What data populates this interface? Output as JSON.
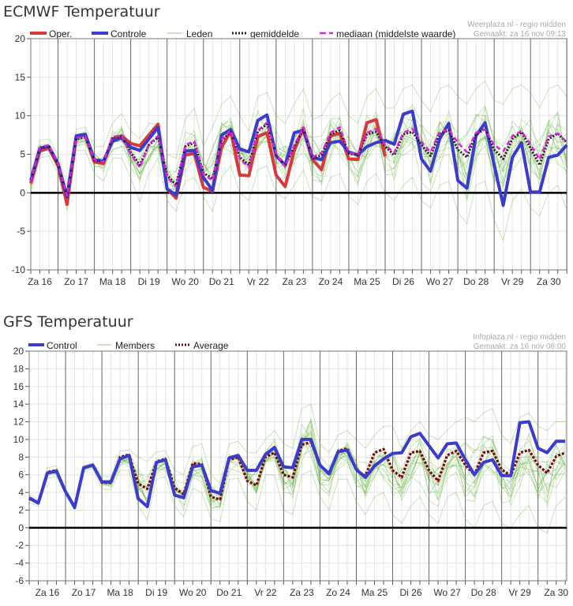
{
  "chart_data": [
    {
      "type": "line",
      "title": "ECMWF Temperatuur",
      "source_line1": "Weerplaza.nl - regio midden",
      "source_line2": "Gemaakt: za 16 nov 09:13",
      "x_start": "Za 16 06:00",
      "x_step_hours": 6,
      "x_tick_labels": [
        "Za 16",
        "Zo 17",
        "Ma 18",
        "Di 19",
        "Wo 20",
        "Do 21",
        "Vr 22",
        "Za 23",
        "Zo 24",
        "Ma 25",
        "Di 26",
        "Wo 27",
        "Do 28",
        "Vr 29",
        "Za 30"
      ],
      "ylim": [
        -10,
        20
      ],
      "y_tick_step": 5,
      "y_tick_labels": [
        "20",
        "15",
        "10",
        "5",
        "0",
        "-5",
        "-10"
      ],
      "grid": true,
      "legend_position": "top-left",
      "legend": {
        "oper": "Oper.",
        "control": "Controle",
        "members": "Leden",
        "mean": "gemiddelde",
        "median": "mediaan (middelste waarde)"
      },
      "colors": {
        "oper": "#d63a3a",
        "control": "#3b3bcc",
        "members": "#5fb13a",
        "mean": "#222222",
        "median": "#e020e0"
      },
      "series": [
        {
          "name": "Oper.",
          "values": [
            1.2,
            5.4,
            5.8,
            3.5,
            -1.5,
            7.3,
            7.5,
            4.0,
            3.8,
            7.0,
            7.4,
            6.4,
            6.1,
            7.5,
            8.9,
            0.5,
            -0.7,
            4.9,
            5.1,
            0.7,
            0.2,
            5.9,
            8.0,
            2.3,
            2.2,
            7.3,
            7.8,
            2.3,
            0.8,
            5.5,
            8.4,
            4.3,
            3.0,
            7.4,
            7.7,
            4.4,
            4.3,
            9.1,
            9.5,
            4.7
          ]
        },
        {
          "name": "Controle",
          "values": [
            1.6,
            5.8,
            6.0,
            3.8,
            -0.5,
            7.4,
            7.6,
            4.3,
            4.1,
            6.7,
            7.1,
            5.9,
            5.5,
            7.0,
            8.5,
            0.5,
            -0.3,
            5.4,
            5.5,
            2.0,
            0.3,
            7.5,
            8.2,
            5.7,
            5.3,
            9.4,
            10.1,
            4.8,
            3.6,
            7.8,
            8.1,
            4.6,
            4.3,
            6.5,
            6.7,
            5.3,
            4.9,
            6.0,
            6.5,
            6.8,
            6.3,
            10.2,
            10.6,
            4.4,
            2.8,
            7.0,
            9.0,
            1.6,
            0.6,
            7.4,
            9.1,
            3.6,
            -1.6,
            4.6,
            6.5,
            0.1,
            0.1,
            4.6,
            4.9,
            6.2
          ]
        },
        {
          "name": "gemiddelde",
          "values": [
            1.5,
            5.8,
            6.1,
            3.7,
            -0.5,
            7.0,
            7.2,
            4.2,
            4.0,
            7.2,
            7.3,
            5.2,
            3.6,
            6.2,
            7.2,
            2.3,
            1.0,
            6.0,
            6.5,
            2.6,
            1.8,
            6.8,
            7.9,
            4.6,
            3.6,
            8.0,
            8.9,
            4.9,
            3.5,
            6.0,
            8.3,
            4.4,
            4.9,
            7.6,
            8.1,
            5.1,
            4.9,
            7.6,
            7.9,
            6.0,
            4.9,
            7.6,
            7.9,
            6.2,
            4.8,
            7.7,
            8.1,
            5.6,
            4.6,
            7.6,
            8.3,
            5.6,
            4.4,
            7.0,
            7.9,
            5.8,
            3.6,
            7.0,
            7.7,
            6.5
          ]
        },
        {
          "name": "mediaan (middelste waarde)",
          "values": [
            1.5,
            5.9,
            6.2,
            3.8,
            -0.4,
            7.1,
            7.3,
            4.3,
            4.0,
            7.3,
            7.4,
            5.0,
            3.3,
            6.3,
            7.4,
            2.0,
            0.8,
            6.2,
            6.7,
            2.4,
            1.6,
            6.9,
            8.1,
            4.4,
            3.3,
            8.1,
            9.1,
            5.0,
            3.4,
            6.2,
            8.5,
            4.6,
            5.2,
            7.8,
            8.5,
            5.2,
            5.0,
            7.8,
            8.3,
            6.2,
            5.2,
            7.8,
            8.3,
            6.6,
            5.3,
            7.9,
            8.2,
            6.5,
            5.3,
            7.8,
            8.2,
            6.2,
            5.4,
            7.4,
            8.0,
            6.3,
            4.3,
            7.3,
            7.7,
            6.6
          ]
        }
      ],
      "members_range": {
        "name": "Leden",
        "max": [
          2.5,
          6.8,
          7.0,
          5.0,
          1.0,
          8.2,
          8.5,
          6.0,
          6.0,
          9.0,
          10.3,
          8.0,
          7.0,
          9.0,
          9.0,
          5.0,
          4.5,
          9.5,
          11.0,
          6.0,
          8.5,
          11.5,
          12.5,
          10.0,
          8.0,
          12.5,
          13.0,
          10.0,
          9.0,
          11.5,
          13.5,
          9.5,
          10.0,
          12.0,
          13.0,
          10.0,
          9.0,
          12.5,
          13.5,
          11.0,
          11.0,
          13.5,
          14.0,
          12.0,
          10.5,
          13.5,
          14.0,
          12.5,
          11.5,
          13.5,
          14.5,
          12.0,
          11.5,
          13.5,
          14.0,
          13.0,
          11.0,
          13.5,
          14.0,
          12.5
        ],
        "min": [
          0.0,
          4.5,
          4.8,
          2.5,
          -2.3,
          5.5,
          5.5,
          2.5,
          1.5,
          4.5,
          4.5,
          2.0,
          -1.2,
          2.5,
          4.5,
          -1.0,
          -2.4,
          1.5,
          2.0,
          -0.5,
          -2.4,
          2.0,
          3.5,
          0.0,
          -1.0,
          3.0,
          3.5,
          0.0,
          -0.8,
          1.0,
          3.0,
          -0.5,
          -1.0,
          2.0,
          2.5,
          -0.5,
          -1.5,
          1.5,
          2.5,
          0.0,
          -1.0,
          1.0,
          2.0,
          -1.0,
          -2.0,
          1.0,
          1.5,
          -2.5,
          -4.0,
          1.0,
          1.5,
          -3.5,
          -6.2,
          -1.0,
          0.5,
          -2.0,
          -3.0,
          0.0,
          1.0,
          -2.3
        ]
      }
    },
    {
      "type": "line",
      "title": "GFS Temperatuur",
      "source_line1": "Infoplaza.nl - regio midden",
      "source_line2": "Gemaakt: za 16 nov 08:00",
      "x_start": "Za 16 00:00",
      "x_step_hours": 6,
      "x_tick_labels": [
        "Za 16",
        "Zo 17",
        "Ma 18",
        "Di 19",
        "Wo 20",
        "Do 21",
        "Vr 22",
        "Za 23",
        "Zo 24",
        "Ma 25",
        "Di 26",
        "Wo 27",
        "Do 28",
        "Vr 29",
        "Za 30"
      ],
      "ylim": [
        -6,
        20
      ],
      "y_tick_step": 2,
      "y_tick_labels": [
        "20",
        "18",
        "16",
        "14",
        "12",
        "10",
        "8",
        "6",
        "4",
        "2",
        "0",
        "-2",
        "-4",
        "-6"
      ],
      "grid": true,
      "legend_position": "top-left",
      "legend": {
        "control": "Control",
        "members": "Members",
        "average": "Average"
      },
      "colors": {
        "control": "#3b3bcc",
        "members": "#5fb13a",
        "average": "#7a0a0a"
      },
      "series": [
        {
          "name": "Control",
          "values": [
            3.4,
            2.8,
            6.2,
            6.4,
            4.1,
            2.3,
            6.8,
            7.1,
            5.2,
            5.2,
            7.8,
            8.2,
            3.3,
            2.4,
            7.4,
            7.7,
            3.7,
            3.4,
            6.9,
            7.1,
            4.2,
            3.9,
            7.9,
            8.2,
            6.5,
            6.5,
            8.3,
            9.1,
            6.9,
            6.8,
            10.0,
            10.0,
            7.1,
            6.1,
            8.6,
            8.8,
            6.6,
            5.7,
            7.0,
            7.8,
            8.4,
            8.5,
            10.3,
            10.7,
            9.3,
            7.9,
            9.5,
            9.6,
            7.7,
            6.0,
            7.4,
            7.7,
            5.9,
            5.9,
            11.9,
            12.0,
            9.0,
            8.5,
            9.8,
            9.8
          ]
        },
        {
          "name": "Average",
          "values": [
            3.3,
            2.8,
            6.3,
            6.5,
            4.1,
            2.3,
            6.8,
            7.1,
            5.1,
            5.1,
            8.0,
            8.3,
            5.0,
            4.4,
            7.5,
            7.8,
            4.5,
            3.8,
            7.3,
            7.2,
            3.5,
            3.2,
            7.7,
            8.0,
            5.3,
            4.8,
            8.0,
            8.5,
            6.0,
            5.7,
            9.4,
            9.7,
            7.1,
            6.0,
            8.7,
            9.0,
            6.5,
            5.9,
            8.5,
            8.9,
            6.5,
            5.7,
            8.5,
            8.7,
            6.5,
            5.3,
            8.2,
            8.7,
            7.1,
            6.0,
            8.5,
            8.7,
            6.6,
            5.9,
            8.5,
            8.8,
            7.1,
            6.2,
            8.1,
            8.5
          ]
        }
      ],
      "members_range": {
        "name": "Members",
        "max": [
          3.8,
          3.1,
          6.8,
          7.0,
          4.4,
          2.7,
          7.1,
          7.3,
          5.8,
          5.8,
          8.7,
          8.8,
          8.0,
          7.5,
          8.6,
          8.7,
          6.5,
          6.0,
          9.2,
          9.5,
          6.0,
          5.0,
          9.5,
          9.8,
          8.5,
          8.5,
          10.0,
          11.0,
          9.5,
          9.0,
          13.5,
          14.0,
          9.5,
          8.5,
          10.5,
          11.0,
          10.0,
          9.0,
          10.5,
          11.5,
          11.5,
          9.0,
          11.0,
          12.0,
          10.5,
          10.0,
          11.0,
          12.0,
          12.5,
          12.0,
          13.0,
          13.5,
          10.5,
          9.5,
          12.5,
          13.0,
          11.5,
          11.0,
          12.0,
          12.0
        ],
        "min": [
          2.9,
          2.4,
          5.6,
          5.8,
          3.8,
          2.0,
          6.3,
          6.7,
          4.4,
          4.3,
          6.5,
          6.5,
          2.5,
          0.9,
          5.5,
          5.8,
          2.5,
          1.2,
          4.5,
          4.0,
          1.0,
          0.7,
          5.5,
          5.6,
          3.0,
          2.0,
          6.0,
          6.0,
          2.0,
          1.5,
          6.0,
          6.5,
          3.5,
          2.0,
          5.5,
          5.5,
          3.0,
          1.5,
          3.5,
          4.0,
          1.5,
          0.5,
          2.5,
          3.5,
          1.5,
          0.5,
          3.5,
          4.0,
          1.0,
          0.0,
          2.5,
          3.0,
          0.5,
          0.0,
          1.5,
          2.5,
          0.0,
          -0.6,
          2.5,
          3.5
        ]
      }
    }
  ]
}
